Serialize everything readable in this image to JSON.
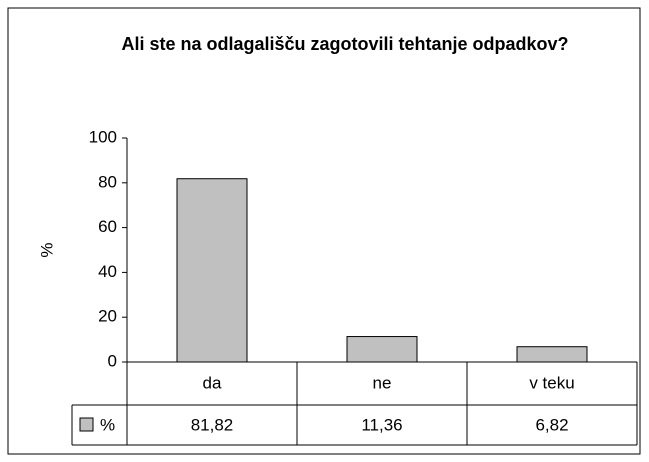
{
  "chart_data": {
    "type": "bar",
    "title": "Ali ste na odlagališču zagotovili tehtanje odpadkov?",
    "y_label": "%",
    "categories": [
      "da",
      "ne",
      "v teku"
    ],
    "series": [
      {
        "name": "%",
        "color": "#c0c0c0",
        "values": [
          81.82,
          11.36,
          6.82
        ],
        "value_labels": [
          "81,82",
          "11,36",
          "6,82"
        ]
      }
    ],
    "ylim": [
      0,
      100
    ],
    "yticks": [
      0,
      20,
      40,
      60,
      80,
      100
    ],
    "data_table": true
  }
}
